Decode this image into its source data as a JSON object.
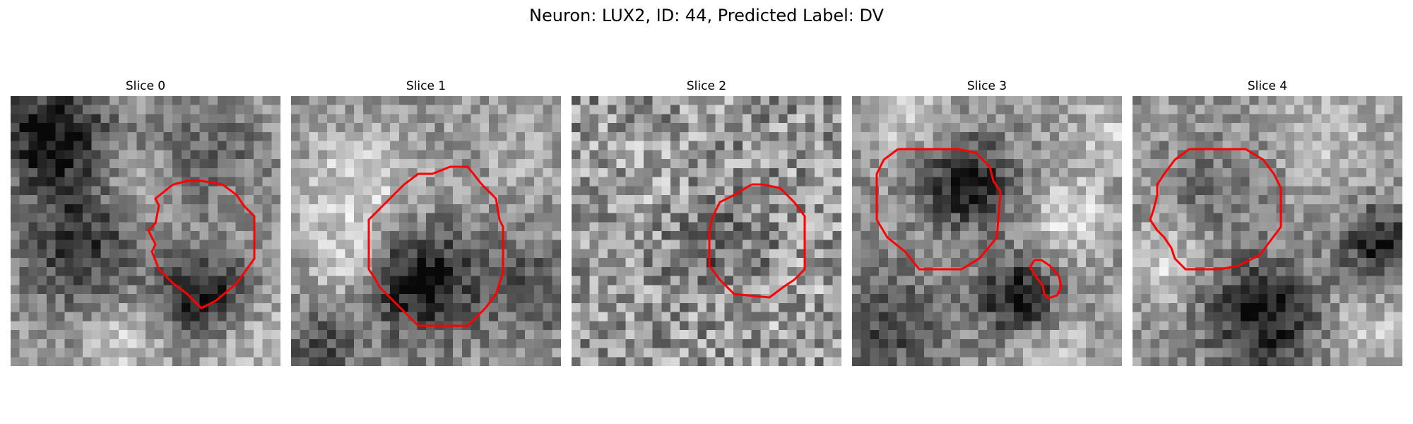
{
  "figure": {
    "title": "Neuron: LUX2, ID: 44, Predicted Label: DV",
    "contour_color": "#ff0000"
  },
  "slices": [
    {
      "label": "Slice 0"
    },
    {
      "label": "Slice 1"
    },
    {
      "label": "Slice 2"
    },
    {
      "label": "Slice 3"
    },
    {
      "label": "Slice 4"
    }
  ]
}
